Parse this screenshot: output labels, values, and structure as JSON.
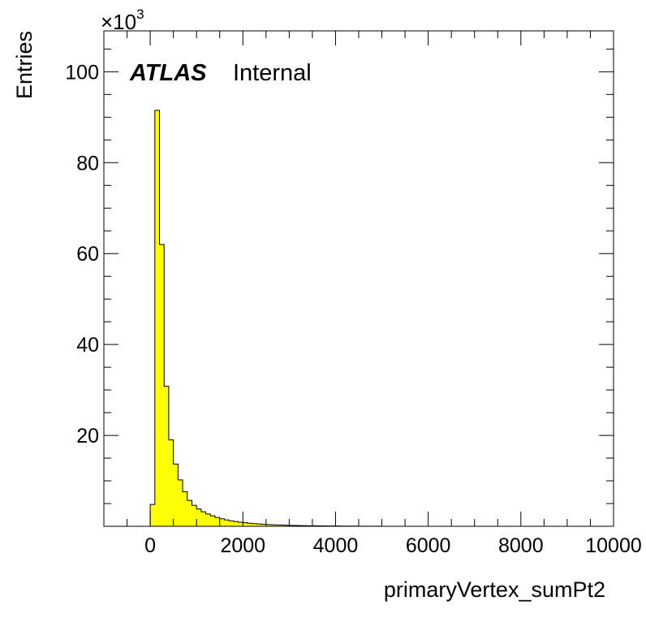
{
  "chart_data": {
    "type": "histogram",
    "title": "",
    "xlabel": "primaryVertex_sumPt2",
    "ylabel": "Entries",
    "y_multiplier": "×10",
    "y_multiplier_exponent": "3",
    "xlim": [
      -1000,
      10000
    ],
    "ylim": [
      0,
      109000
    ],
    "x_ticks": [
      0,
      2000,
      4000,
      6000,
      8000,
      10000
    ],
    "x_tick_labels": [
      "0",
      "2000",
      "4000",
      "6000",
      "8000",
      "10000"
    ],
    "y_ticks": [
      20000,
      40000,
      60000,
      80000,
      100000
    ],
    "y_tick_labels": [
      "20",
      "40",
      "60",
      "80",
      "100"
    ],
    "bin_width": 100,
    "bin_start": 0,
    "values": [
      4800,
      91500,
      62000,
      30800,
      19000,
      13700,
      10200,
      7600,
      5700,
      4600,
      3800,
      3200,
      2700,
      2300,
      1950,
      1650,
      1400,
      1200,
      1050,
      900,
      780,
      680,
      590,
      510,
      450,
      390,
      340,
      300,
      260,
      230,
      200,
      175,
      155,
      135,
      120,
      105,
      93,
      82,
      72,
      64,
      56,
      50,
      44,
      39,
      34,
      30,
      27,
      24,
      21,
      19
    ],
    "fill_color": "#ffff00",
    "line_color": "#000000",
    "grid": false,
    "legend": "none"
  },
  "labels": {
    "atlas": "ATLAS",
    "internal": "Internal"
  }
}
